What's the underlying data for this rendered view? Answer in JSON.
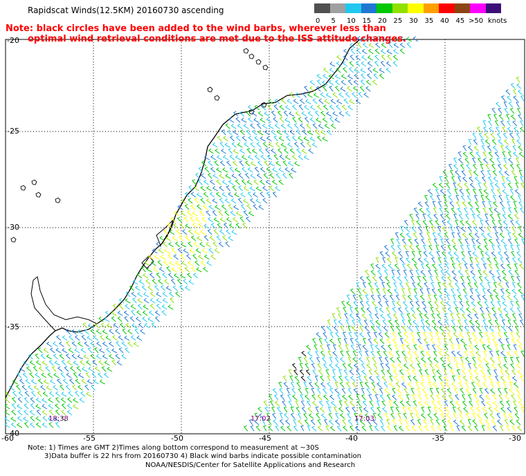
{
  "title": "Rapidscat Winds(12.5KM) 20160730 ascending",
  "red_note": {
    "line1": "Note: black circles have been added to the wind barbs, wherever less than",
    "line2": "optimal wind retrieval conditions are met due to the ISS attitude changes."
  },
  "colorbar": {
    "unit": "knots",
    "labels": [
      "0",
      "5",
      "10",
      "15",
      "20",
      "25",
      "30",
      "35",
      "40",
      "45",
      ">50"
    ],
    "colors": [
      "#505050",
      "#a0a0a0",
      "#20c8f0",
      "#1e78d2",
      "#00c800",
      "#90e000",
      "#ffff00",
      "#ffa000",
      "#ff0000",
      "#8b4513",
      "#ff00ff",
      "#3a1078"
    ]
  },
  "axes": {
    "lat_labels": [
      "-20",
      "-25",
      "-30",
      "-35",
      "-40"
    ],
    "lon_labels": [
      "-60",
      "-55",
      "-50",
      "-45",
      "-40",
      "-35",
      "-30"
    ]
  },
  "pass_times": [
    "18:38",
    "17:02",
    "17:03"
  ],
  "footer": {
    "line1": "Note: 1) Times are GMT 2)Times along bottom correspond to measurement at ~30S",
    "line2": "3)Data buffer is 22 hrs from 20160730 4) Black wind barbs indicate possible contamination",
    "line3": "NOAA/NESDIS/Center for Satellite Applications and Research"
  }
}
